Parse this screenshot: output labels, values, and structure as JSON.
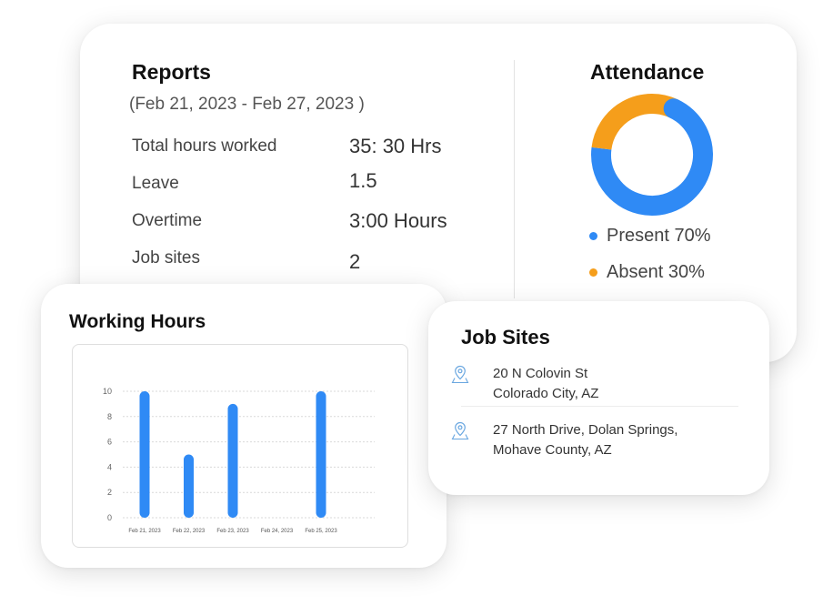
{
  "reports": {
    "title": "Reports",
    "date_range": "(Feb 21, 2023 - Feb 27, 2023 )",
    "stats": [
      {
        "label": "Total hours worked",
        "value": "35: 30 Hrs"
      },
      {
        "label": "Leave",
        "value": "1.5"
      },
      {
        "label": "Overtime",
        "value": "3:00 Hours"
      },
      {
        "label": "Job sites",
        "value": "2"
      }
    ]
  },
  "attendance": {
    "title": "Attendance",
    "items": [
      {
        "label": "Present 70%",
        "percent": 70,
        "color": "#2f8af5"
      },
      {
        "label": "Absent 30%",
        "percent": 30,
        "color": "#f59e1b"
      }
    ]
  },
  "working_hours": {
    "title": "Working Hours"
  },
  "chart_data": {
    "type": "bar",
    "categories": [
      "Feb 21, 2023",
      "Feb 22, 2023",
      "Feb 23, 2023",
      "Feb 24, 2023",
      "Feb 25, 2023"
    ],
    "values": [
      10,
      5,
      9,
      0,
      10
    ],
    "yticks": [
      "10",
      "8",
      "6",
      "4",
      "2",
      "0"
    ],
    "ylim": [
      0,
      10
    ],
    "grid": true,
    "bar_color": "#2f8af5"
  },
  "job_sites": {
    "title": "Job Sites",
    "sites": [
      {
        "line1": "20 N Colovin St",
        "line2": "Colorado City, AZ",
        "icon": "map-pin-icon"
      },
      {
        "line1": "27 North Drive, Dolan Springs,",
        "line2": "Mohave County, AZ",
        "icon": "map-pin-icon"
      }
    ]
  }
}
